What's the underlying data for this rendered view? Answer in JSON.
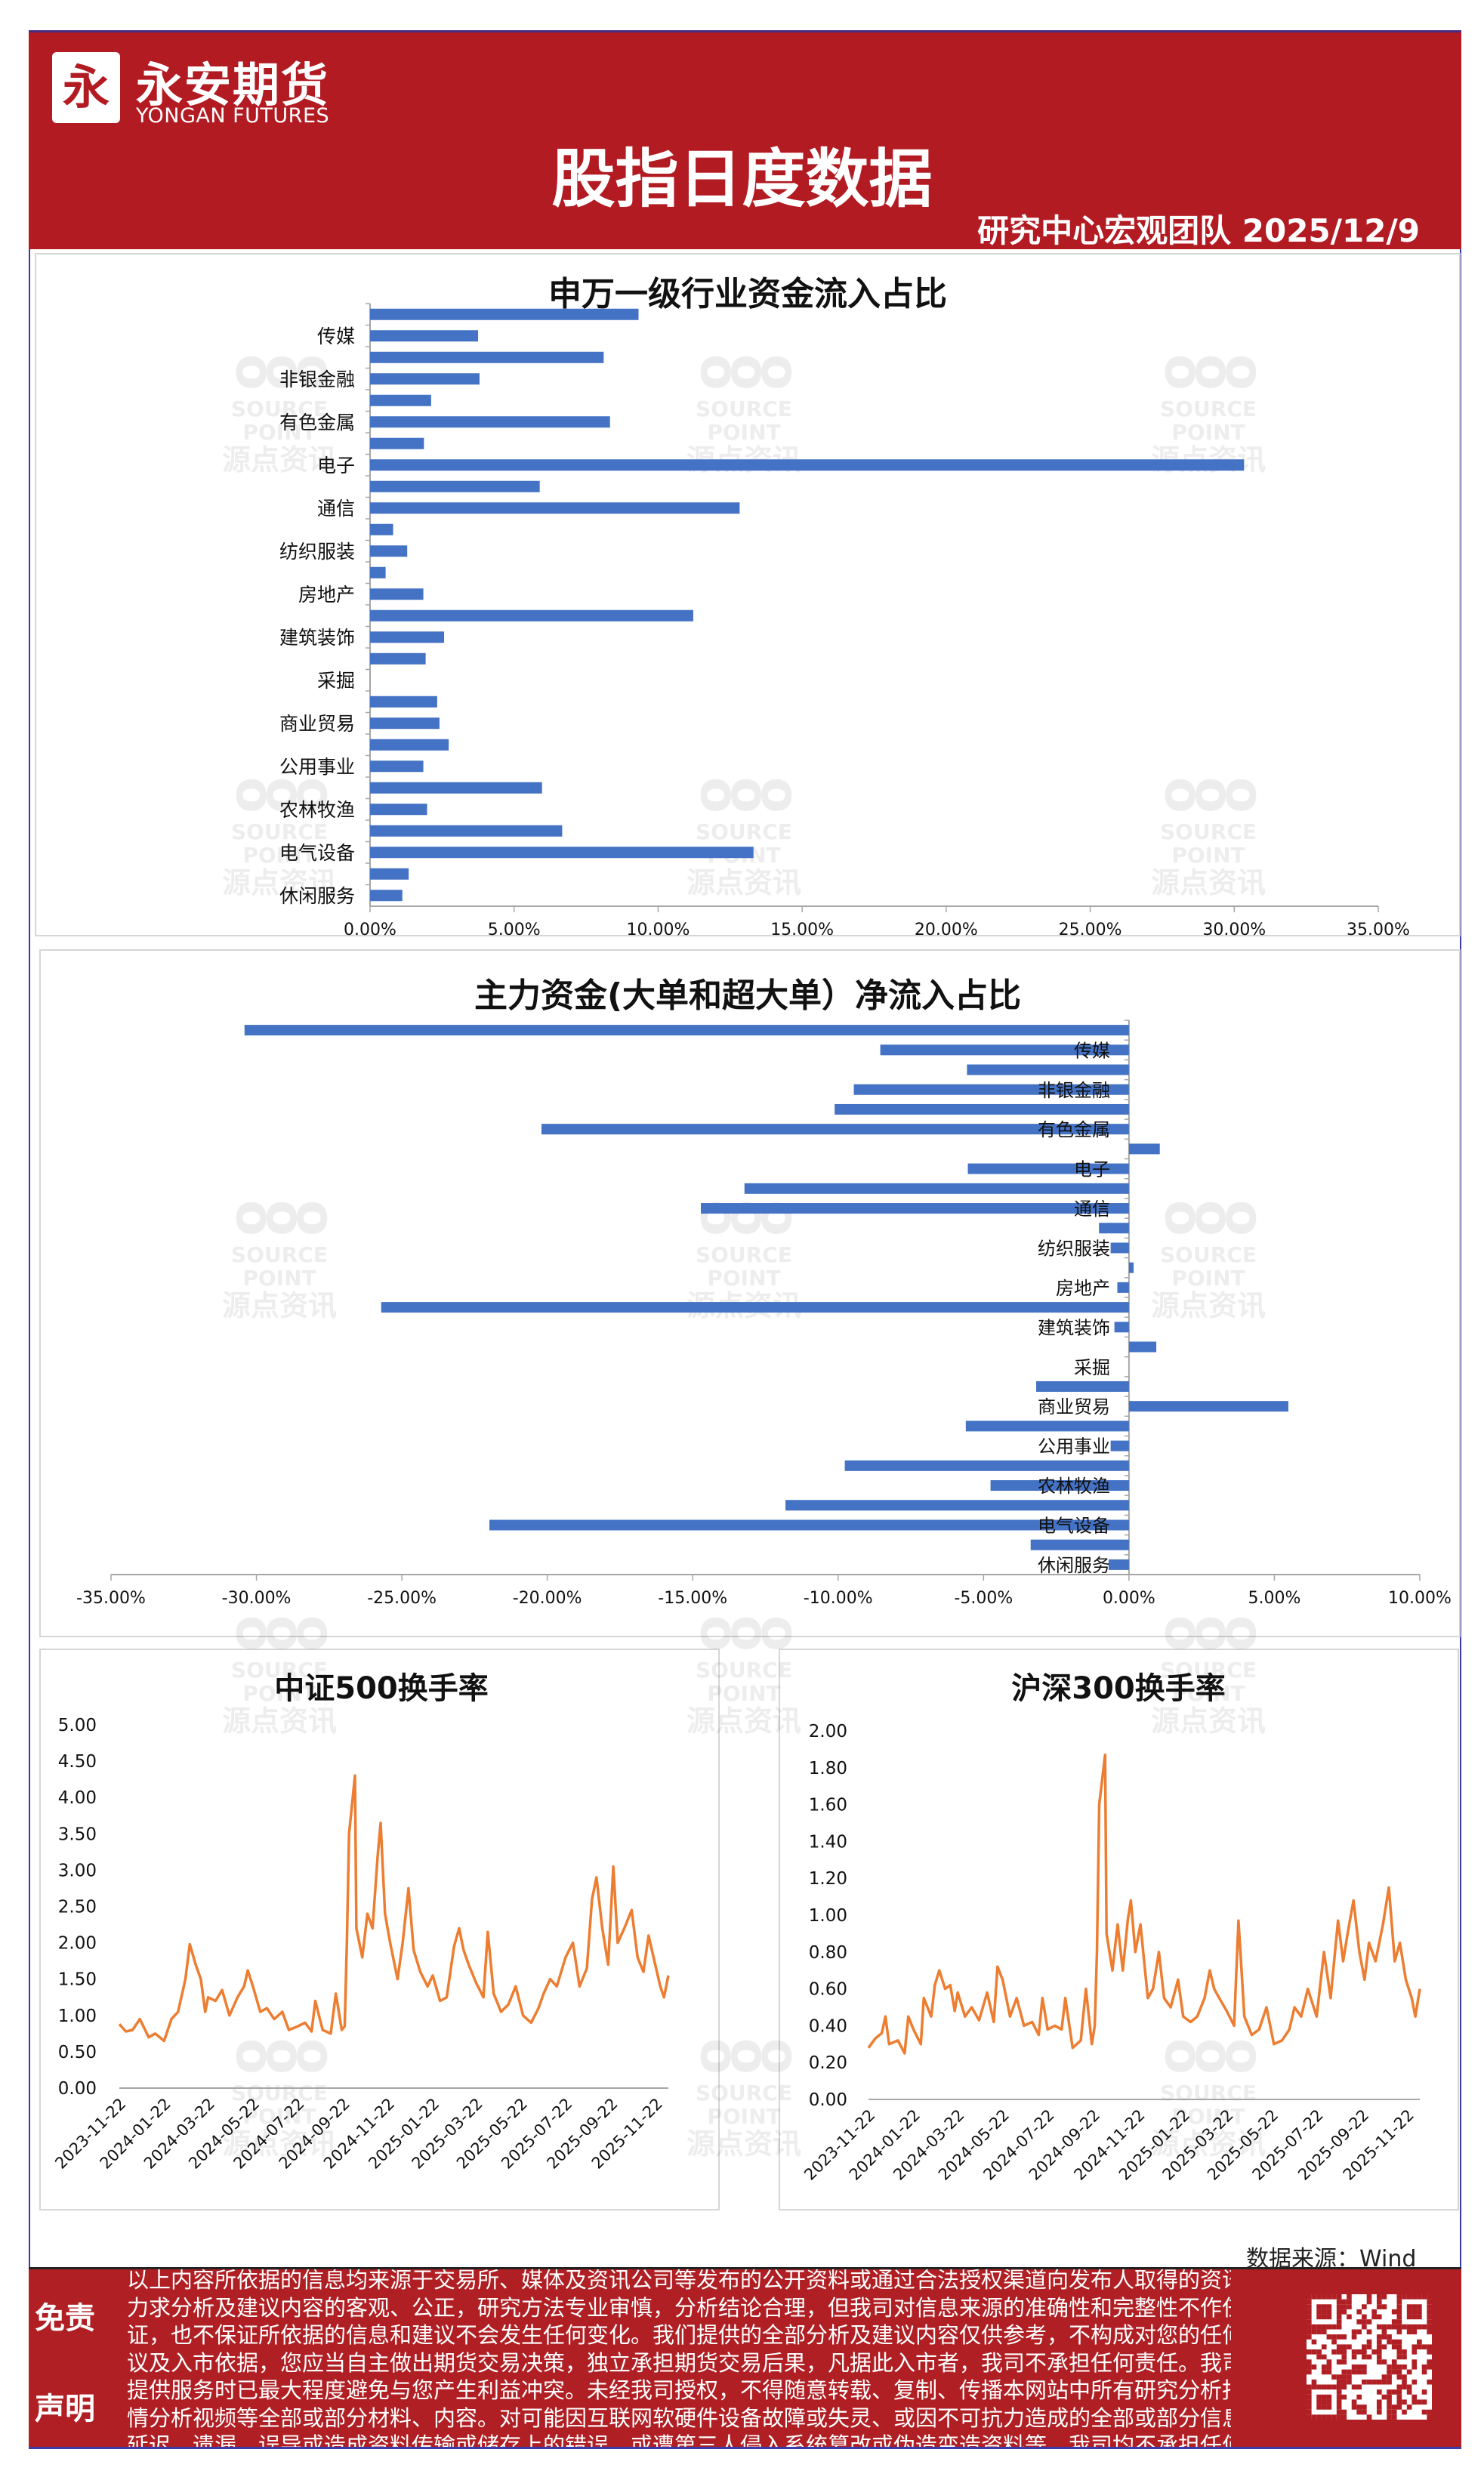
{
  "header": {
    "logo_cn": "永安期货",
    "logo_en": "YONGAN FUTURES",
    "logo_glyph": "永",
    "title": "股指日度数据",
    "subtitle": "研究中心宏观团队   2025/12/9"
  },
  "watermark": {
    "en": "SOURCE POINT",
    "cn": "源点资讯"
  },
  "colors": {
    "brand_red": "#B31B23",
    "bar_blue": "#4472C4",
    "line_orange": "#ED7D31"
  },
  "chart_data": [
    {
      "type": "bar",
      "orientation": "horizontal",
      "title": "申万一级行业资金流入占比",
      "categories": [
        "",
        "传媒",
        "",
        "非银金融",
        "",
        "有色金属",
        "",
        "电子",
        "",
        "通信",
        "",
        "纺织服装",
        "",
        "房地产",
        "",
        "建筑装饰",
        "",
        "采掘",
        "",
        "商业贸易",
        "",
        "公用事业",
        "",
        "农林牧渔",
        "",
        "电气设备",
        "",
        "休闲服务"
      ],
      "values": [
        9.32,
        3.75,
        8.11,
        3.8,
        2.12,
        8.33,
        1.87,
        30.34,
        5.89,
        12.83,
        0.8,
        1.29,
        0.54,
        1.85,
        11.22,
        2.57,
        1.93,
        0,
        2.33,
        2.41,
        2.73,
        1.85,
        5.97,
        1.98,
        6.67,
        13.31,
        1.34,
        1.12
      ],
      "unit": "%",
      "xlim": [
        0,
        35
      ],
      "xticks": [
        "0.00%",
        "5.00%",
        "10.00%",
        "15.00%",
        "20.00%",
        "25.00%",
        "30.00%",
        "35.00%"
      ],
      "grid": false
    },
    {
      "type": "bar",
      "orientation": "horizontal",
      "title": "主力资金(大单和超大单）净流入占比",
      "categories": [
        "",
        "传媒",
        "",
        "非银金融",
        "",
        "有色金属",
        "",
        "电子",
        "",
        "通信",
        "",
        "纺织服装",
        "",
        "房地产",
        "",
        "建筑装饰",
        "",
        "采掘",
        "",
        "商业贸易",
        "",
        "公用事业",
        "",
        "农林牧渔",
        "",
        "电气设备",
        "",
        "休闲服务"
      ],
      "values": [
        -30.41,
        -8.55,
        -5.57,
        -9.46,
        -10.12,
        -20.2,
        1.06,
        -5.54,
        -13.22,
        -14.72,
        -1.03,
        -0.63,
        0.16,
        -0.4,
        -25.71,
        -0.5,
        0.94,
        0,
        -3.19,
        5.48,
        -5.61,
        -0.63,
        -9.77,
        -4.76,
        -11.81,
        -21.99,
        -3.38,
        -0.7
      ],
      "unit": "%",
      "xlim": [
        -35,
        10
      ],
      "xticks": [
        "-35.00%",
        "-30.00%",
        "-25.00%",
        "-20.00%",
        "-15.00%",
        "-10.00%",
        "-5.00%",
        "0.00%",
        "5.00%",
        "10.00%"
      ],
      "grid": false
    },
    {
      "type": "line",
      "title": "中证500换手率",
      "ylim": [
        0,
        5
      ],
      "yticks": [
        "0.00",
        "0.50",
        "1.00",
        "1.50",
        "2.00",
        "2.50",
        "3.00",
        "3.50",
        "4.00",
        "4.50",
        "5.00"
      ],
      "xticks": [
        "2023-11-22",
        "2024-01-22",
        "2024-03-22",
        "2024-05-22",
        "2024-07-22",
        "2024-09-22",
        "2024-11-22",
        "2025-01-22",
        "2025-03-22",
        "2025-05-22",
        "2025-07-22",
        "2025-09-22",
        "2025-11-22"
      ],
      "xrange": [
        "2023-11-22",
        "2025-12-09"
      ],
      "grid": false,
      "points": [
        [
          "2023-11-22",
          0.88
        ],
        [
          "2023-12-01",
          0.78
        ],
        [
          "2023-12-10",
          0.8
        ],
        [
          "2023-12-20",
          0.95
        ],
        [
          "2024-01-01",
          0.7
        ],
        [
          "2024-01-10",
          0.75
        ],
        [
          "2024-01-22",
          0.65
        ],
        [
          "2024-02-01",
          0.95
        ],
        [
          "2024-02-10",
          1.05
        ],
        [
          "2024-02-20",
          1.5
        ],
        [
          "2024-02-26",
          1.98
        ],
        [
          "2024-03-05",
          1.7
        ],
        [
          "2024-03-12",
          1.5
        ],
        [
          "2024-03-18",
          1.05
        ],
        [
          "2024-03-22",
          1.25
        ],
        [
          "2024-04-01",
          1.2
        ],
        [
          "2024-04-10",
          1.35
        ],
        [
          "2024-04-20",
          1.0
        ],
        [
          "2024-05-01",
          1.25
        ],
        [
          "2024-05-10",
          1.4
        ],
        [
          "2024-05-15",
          1.62
        ],
        [
          "2024-05-22",
          1.4
        ],
        [
          "2024-06-01",
          1.05
        ],
        [
          "2024-06-10",
          1.1
        ],
        [
          "2024-06-20",
          0.95
        ],
        [
          "2024-07-01",
          1.05
        ],
        [
          "2024-07-10",
          0.8
        ],
        [
          "2024-07-22",
          0.85
        ],
        [
          "2024-08-01",
          0.9
        ],
        [
          "2024-08-10",
          0.78
        ],
        [
          "2024-08-15",
          1.2
        ],
        [
          "2024-08-25",
          0.8
        ],
        [
          "2024-09-05",
          0.75
        ],
        [
          "2024-09-12",
          1.3
        ],
        [
          "2024-09-20",
          0.8
        ],
        [
          "2024-09-24",
          0.85
        ],
        [
          "2024-09-27",
          2.0
        ],
        [
          "2024-09-30",
          3.5
        ],
        [
          "2024-10-08",
          4.3
        ],
        [
          "2024-10-10",
          2.2
        ],
        [
          "2024-10-18",
          1.8
        ],
        [
          "2024-10-25",
          2.4
        ],
        [
          "2024-11-01",
          2.2
        ],
        [
          "2024-11-08",
          3.2
        ],
        [
          "2024-11-12",
          3.65
        ],
        [
          "2024-11-18",
          2.4
        ],
        [
          "2024-11-25",
          2.0
        ],
        [
          "2024-12-05",
          1.5
        ],
        [
          "2024-12-12",
          2.0
        ],
        [
          "2024-12-20",
          2.75
        ],
        [
          "2024-12-27",
          1.9
        ],
        [
          "2025-01-05",
          1.6
        ],
        [
          "2025-01-15",
          1.4
        ],
        [
          "2025-01-22",
          1.55
        ],
        [
          "2025-02-01",
          1.2
        ],
        [
          "2025-02-10",
          1.25
        ],
        [
          "2025-02-20",
          1.95
        ],
        [
          "2025-02-27",
          2.2
        ],
        [
          "2025-03-05",
          1.9
        ],
        [
          "2025-03-12",
          1.7
        ],
        [
          "2025-03-22",
          1.45
        ],
        [
          "2025-04-01",
          1.25
        ],
        [
          "2025-04-07",
          2.15
        ],
        [
          "2025-04-15",
          1.3
        ],
        [
          "2025-04-25",
          1.05
        ],
        [
          "2025-05-05",
          1.15
        ],
        [
          "2025-05-15",
          1.4
        ],
        [
          "2025-05-25",
          1.0
        ],
        [
          "2025-06-05",
          0.9
        ],
        [
          "2025-06-15",
          1.1
        ],
        [
          "2025-06-22",
          1.3
        ],
        [
          "2025-07-01",
          1.5
        ],
        [
          "2025-07-10",
          1.4
        ],
        [
          "2025-07-22",
          1.8
        ],
        [
          "2025-08-01",
          2.0
        ],
        [
          "2025-08-10",
          1.4
        ],
        [
          "2025-08-20",
          1.65
        ],
        [
          "2025-08-27",
          2.6
        ],
        [
          "2025-09-02",
          2.9
        ],
        [
          "2025-09-10",
          2.2
        ],
        [
          "2025-09-18",
          1.7
        ],
        [
          "2025-09-25",
          3.05
        ],
        [
          "2025-10-01",
          2.0
        ],
        [
          "2025-10-10",
          2.2
        ],
        [
          "2025-10-20",
          2.45
        ],
        [
          "2025-10-28",
          1.8
        ],
        [
          "2025-11-05",
          1.6
        ],
        [
          "2025-11-12",
          2.1
        ],
        [
          "2025-11-20",
          1.75
        ],
        [
          "2025-11-28",
          1.4
        ],
        [
          "2025-12-03",
          1.25
        ],
        [
          "2025-12-09",
          1.55
        ]
      ]
    },
    {
      "type": "line",
      "title": "沪深300换手率",
      "ylim": [
        0,
        2
      ],
      "yticks": [
        "0.00",
        "0.20",
        "0.40",
        "0.60",
        "0.80",
        "1.00",
        "1.20",
        "1.40",
        "1.60",
        "1.80",
        "2.00"
      ],
      "xticks": [
        "2023-11-22",
        "2024-01-22",
        "2024-03-22",
        "2024-05-22",
        "2024-07-22",
        "2024-09-22",
        "2024-11-22",
        "2025-01-22",
        "2025-03-22",
        "2025-05-22",
        "2025-07-22",
        "2025-09-22",
        "2025-11-22"
      ],
      "xrange": [
        "2023-11-22",
        "2025-12-09"
      ],
      "grid": false,
      "points": [
        [
          "2023-11-22",
          0.28
        ],
        [
          "2023-12-01",
          0.33
        ],
        [
          "2023-12-10",
          0.36
        ],
        [
          "2023-12-15",
          0.45
        ],
        [
          "2023-12-20",
          0.3
        ],
        [
          "2024-01-01",
          0.32
        ],
        [
          "2024-01-10",
          0.25
        ],
        [
          "2024-01-15",
          0.45
        ],
        [
          "2024-01-22",
          0.38
        ],
        [
          "2024-02-01",
          0.3
        ],
        [
          "2024-02-05",
          0.55
        ],
        [
          "2024-02-15",
          0.45
        ],
        [
          "2024-02-20",
          0.62
        ],
        [
          "2024-02-26",
          0.7
        ],
        [
          "2024-03-05",
          0.6
        ],
        [
          "2024-03-12",
          0.62
        ],
        [
          "2024-03-18",
          0.48
        ],
        [
          "2024-03-22",
          0.58
        ],
        [
          "2024-04-01",
          0.45
        ],
        [
          "2024-04-10",
          0.5
        ],
        [
          "2024-04-20",
          0.43
        ],
        [
          "2024-05-01",
          0.58
        ],
        [
          "2024-05-10",
          0.42
        ],
        [
          "2024-05-15",
          0.72
        ],
        [
          "2024-05-22",
          0.65
        ],
        [
          "2024-06-01",
          0.45
        ],
        [
          "2024-06-10",
          0.55
        ],
        [
          "2024-06-20",
          0.4
        ],
        [
          "2024-07-01",
          0.42
        ],
        [
          "2024-07-10",
          0.35
        ],
        [
          "2024-07-15",
          0.55
        ],
        [
          "2024-07-22",
          0.38
        ],
        [
          "2024-08-01",
          0.4
        ],
        [
          "2024-08-10",
          0.38
        ],
        [
          "2024-08-15",
          0.55
        ],
        [
          "2024-08-25",
          0.28
        ],
        [
          "2024-09-05",
          0.32
        ],
        [
          "2024-09-12",
          0.6
        ],
        [
          "2024-09-20",
          0.3
        ],
        [
          "2024-09-24",
          0.4
        ],
        [
          "2024-09-27",
          0.8
        ],
        [
          "2024-09-30",
          1.6
        ],
        [
          "2024-10-08",
          1.87
        ],
        [
          "2024-10-10",
          0.9
        ],
        [
          "2024-10-18",
          0.7
        ],
        [
          "2024-10-25",
          0.95
        ],
        [
          "2024-11-01",
          0.7
        ],
        [
          "2024-11-08",
          0.98
        ],
        [
          "2024-11-12",
          1.08
        ],
        [
          "2024-11-18",
          0.8
        ],
        [
          "2024-11-25",
          0.95
        ],
        [
          "2024-12-05",
          0.55
        ],
        [
          "2024-12-12",
          0.6
        ],
        [
          "2024-12-20",
          0.8
        ],
        [
          "2024-12-27",
          0.55
        ],
        [
          "2025-01-05",
          0.5
        ],
        [
          "2025-01-15",
          0.65
        ],
        [
          "2025-01-22",
          0.45
        ],
        [
          "2025-02-01",
          0.42
        ],
        [
          "2025-02-10",
          0.45
        ],
        [
          "2025-02-20",
          0.55
        ],
        [
          "2025-02-27",
          0.7
        ],
        [
          "2025-03-05",
          0.6
        ],
        [
          "2025-03-12",
          0.55
        ],
        [
          "2025-03-22",
          0.48
        ],
        [
          "2025-04-01",
          0.4
        ],
        [
          "2025-04-07",
          0.97
        ],
        [
          "2025-04-15",
          0.45
        ],
        [
          "2025-04-25",
          0.35
        ],
        [
          "2025-05-05",
          0.38
        ],
        [
          "2025-05-15",
          0.5
        ],
        [
          "2025-05-25",
          0.3
        ],
        [
          "2025-06-05",
          0.32
        ],
        [
          "2025-06-15",
          0.38
        ],
        [
          "2025-06-22",
          0.5
        ],
        [
          "2025-07-01",
          0.45
        ],
        [
          "2025-07-10",
          0.6
        ],
        [
          "2025-07-22",
          0.45
        ],
        [
          "2025-08-01",
          0.8
        ],
        [
          "2025-08-10",
          0.55
        ],
        [
          "2025-08-20",
          0.97
        ],
        [
          "2025-08-27",
          0.75
        ],
        [
          "2025-09-02",
          0.9
        ],
        [
          "2025-09-10",
          1.08
        ],
        [
          "2025-09-18",
          0.8
        ],
        [
          "2025-09-25",
          0.65
        ],
        [
          "2025-10-01",
          0.85
        ],
        [
          "2025-10-10",
          0.75
        ],
        [
          "2025-10-20",
          0.95
        ],
        [
          "2025-10-28",
          1.15
        ],
        [
          "2025-11-05",
          0.75
        ],
        [
          "2025-11-12",
          0.85
        ],
        [
          "2025-11-20",
          0.65
        ],
        [
          "2025-11-28",
          0.55
        ],
        [
          "2025-12-03",
          0.45
        ],
        [
          "2025-12-09",
          0.6
        ]
      ]
    }
  ],
  "source": "数据来源：Wind",
  "footer": {
    "label_top": "免责",
    "label_bottom": "声明",
    "lines": [
      "以上内容所依据的信息均来源于交易所、媒体及资讯公司等发布的公开资料或通过合法授权渠道向发布人取得的资讯，我们",
      "力求分析及建议内容的客观、公正，研究方法专业审慎，分析结论合理，但我司对信息来源的准确性和完整性不作任何保",
      "证，也不保证所依据的信息和建议不会发生任何变化。我们提供的全部分析及建议内容仅供参考，不构成对您的任何投资建",
      "议及入市依据，您应当自主做出期货交易决策，独立承担期货交易后果，凡据此入市者，我司不承担任何责任。我司在为您",
      "提供服务时已最大程度避免与您产生利益冲突。未经我司授权，不得随意转载、复制、传播本网站中所有研究分析报告、行",
      "情分析视频等全部或部分材料、内容。对可能因互联网软硬件设备故障或失灵、或因不可抗力造成的全部或部分信息中断、",
      "延迟、遗漏、误导或造成资料传输或储存上的错误、或遭第三人侵入系统篡改或伪造变造资料等，我司均不承担任何责任。"
    ],
    "qr_icon": "qr-code-icon"
  }
}
